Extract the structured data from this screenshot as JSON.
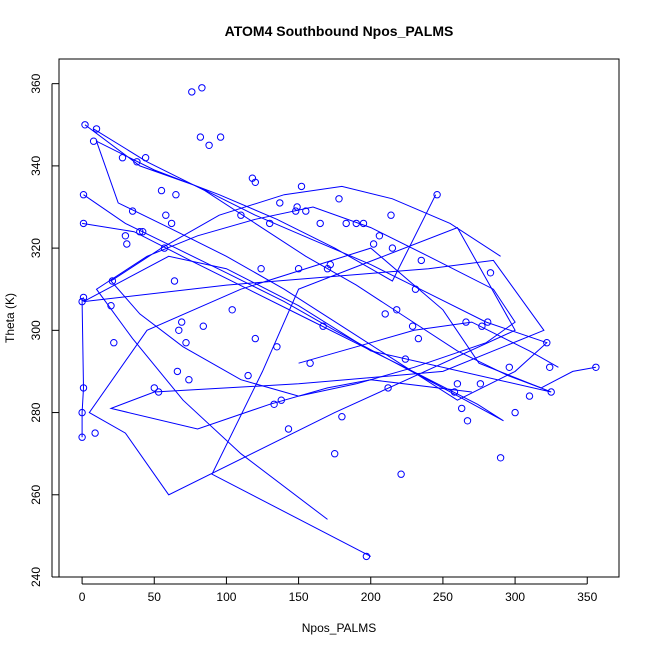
{
  "chart_data": {
    "type": "line",
    "title": "ATOM4 Southbound Npos_PALMS",
    "xlabel": "Npos_PALMS",
    "ylabel": "Theta (K)",
    "xlim": [
      -16,
      372
    ],
    "ylim": [
      240,
      366
    ],
    "xticks": [
      0,
      50,
      100,
      150,
      200,
      250,
      300,
      350
    ],
    "yticks": [
      240,
      260,
      280,
      300,
      320,
      340,
      360
    ],
    "grid": false,
    "legend": "none",
    "colors": {
      "series": "#0000ff",
      "axes": "#000000"
    },
    "series": [
      {
        "type": "line",
        "x": [
          200,
          90,
          125,
          150,
          260,
          300,
          175,
          60,
          30,
          5,
          45,
          110,
          200,
          250,
          275,
          325,
          200,
          150,
          100,
          60,
          1,
          100,
          240,
          285,
          320,
          250,
          150,
          50,
          20,
          80,
          130,
          170,
          200,
          270
        ],
        "y": [
          245,
          265,
          290,
          310,
          325,
          300,
          280,
          260,
          275,
          280,
          300,
          310,
          320,
          305,
          292,
          285,
          295,
          306,
          315,
          318,
          307,
          311,
          315,
          317,
          300,
          290,
          287,
          285,
          281,
          276,
          282,
          286,
          288,
          285
        ]
      },
      {
        "type": "line",
        "x": [
          170,
          110,
          70,
          35,
          10,
          45,
          80,
          120,
          160,
          200,
          240,
          285,
          300,
          280,
          230,
          190,
          150,
          110,
          70,
          40,
          20,
          55,
          95,
          140,
          180,
          215,
          255,
          290
        ],
        "y": [
          254,
          270,
          283,
          298,
          310,
          318,
          323,
          327,
          330,
          325,
          318,
          310,
          302,
          297,
          291,
          287,
          284,
          288,
          296,
          304,
          312,
          320,
          328,
          333,
          335,
          332,
          326,
          318
        ]
      },
      {
        "type": "line",
        "x": [
          2,
          40,
          80,
          120,
          160,
          200,
          240,
          280,
          322,
          300,
          260,
          220,
          180,
          140,
          100,
          60,
          25,
          10,
          50,
          95,
          135,
          175,
          215,
          245
        ],
        "y": [
          350,
          340,
          335,
          328,
          322,
          316,
          309,
          302,
          297,
          290,
          283,
          292,
          301,
          310,
          318,
          325,
          331,
          346,
          339,
          333,
          327,
          320,
          312,
          333
        ]
      },
      {
        "type": "line",
        "x": [
          1,
          30,
          65,
          100,
          140,
          175,
          212,
          250,
          292,
          274,
          235,
          195,
          155,
          115,
          75,
          36,
          0
        ],
        "y": [
          333,
          326,
          320,
          314,
          307,
          300,
          293,
          286,
          278,
          282,
          289,
          296,
          303,
          310,
          317,
          324,
          326
        ]
      },
      {
        "type": "line",
        "x": [
          0,
          0,
          1,
          0,
          1
        ],
        "y": [
          274,
          280,
          286,
          307,
          308
        ]
      },
      {
        "type": "line",
        "x": [
          8,
          45,
          85,
          120,
          155,
          190,
          225,
          260,
          295,
          318,
          340,
          356
        ],
        "y": [
          349,
          341,
          334,
          326,
          318,
          311,
          303,
          295,
          289,
          286,
          290,
          291
        ]
      },
      {
        "type": "line",
        "x": [
          150,
          190,
          230,
          270,
          310,
          330
        ],
        "y": [
          292,
          296,
          300,
          302,
          295,
          291
        ]
      }
    ],
    "points": [
      {
        "x": 0,
        "y": 274
      },
      {
        "x": 0,
        "y": 280
      },
      {
        "x": 1,
        "y": 286
      },
      {
        "x": 0,
        "y": 307
      },
      {
        "x": 1,
        "y": 308
      },
      {
        "x": 1,
        "y": 326
      },
      {
        "x": 1,
        "y": 333
      },
      {
        "x": 2,
        "y": 350
      },
      {
        "x": 8,
        "y": 346
      },
      {
        "x": 10,
        "y": 349
      },
      {
        "x": 9,
        "y": 275
      },
      {
        "x": 20,
        "y": 306
      },
      {
        "x": 21,
        "y": 312
      },
      {
        "x": 22,
        "y": 297
      },
      {
        "x": 28,
        "y": 342
      },
      {
        "x": 30,
        "y": 323
      },
      {
        "x": 31,
        "y": 321
      },
      {
        "x": 35,
        "y": 329
      },
      {
        "x": 38,
        "y": 341
      },
      {
        "x": 40,
        "y": 324
      },
      {
        "x": 42,
        "y": 324
      },
      {
        "x": 44,
        "y": 342
      },
      {
        "x": 50,
        "y": 286
      },
      {
        "x": 53,
        "y": 285
      },
      {
        "x": 55,
        "y": 334
      },
      {
        "x": 57,
        "y": 320
      },
      {
        "x": 58,
        "y": 328
      },
      {
        "x": 62,
        "y": 326
      },
      {
        "x": 64,
        "y": 312
      },
      {
        "x": 65,
        "y": 333
      },
      {
        "x": 66,
        "y": 290
      },
      {
        "x": 67,
        "y": 300
      },
      {
        "x": 69,
        "y": 302
      },
      {
        "x": 72,
        "y": 297
      },
      {
        "x": 74,
        "y": 288
      },
      {
        "x": 76,
        "y": 358
      },
      {
        "x": 82,
        "y": 347
      },
      {
        "x": 83,
        "y": 359
      },
      {
        "x": 84,
        "y": 301
      },
      {
        "x": 88,
        "y": 345
      },
      {
        "x": 96,
        "y": 347
      },
      {
        "x": 104,
        "y": 305
      },
      {
        "x": 110,
        "y": 328
      },
      {
        "x": 115,
        "y": 289
      },
      {
        "x": 118,
        "y": 337
      },
      {
        "x": 120,
        "y": 336
      },
      {
        "x": 120,
        "y": 298
      },
      {
        "x": 124,
        "y": 315
      },
      {
        "x": 130,
        "y": 326
      },
      {
        "x": 133,
        "y": 282
      },
      {
        "x": 135,
        "y": 296
      },
      {
        "x": 137,
        "y": 331
      },
      {
        "x": 138,
        "y": 283
      },
      {
        "x": 143,
        "y": 276
      },
      {
        "x": 148,
        "y": 329
      },
      {
        "x": 149,
        "y": 330
      },
      {
        "x": 150,
        "y": 315
      },
      {
        "x": 152,
        "y": 335
      },
      {
        "x": 155,
        "y": 329
      },
      {
        "x": 158,
        "y": 292
      },
      {
        "x": 165,
        "y": 326
      },
      {
        "x": 167,
        "y": 301
      },
      {
        "x": 170,
        "y": 315
      },
      {
        "x": 172,
        "y": 316
      },
      {
        "x": 175,
        "y": 270
      },
      {
        "x": 178,
        "y": 332
      },
      {
        "x": 180,
        "y": 279
      },
      {
        "x": 183,
        "y": 326
      },
      {
        "x": 190,
        "y": 326
      },
      {
        "x": 195,
        "y": 326
      },
      {
        "x": 197,
        "y": 245
      },
      {
        "x": 202,
        "y": 321
      },
      {
        "x": 206,
        "y": 323
      },
      {
        "x": 210,
        "y": 304
      },
      {
        "x": 212,
        "y": 286
      },
      {
        "x": 214,
        "y": 328
      },
      {
        "x": 215,
        "y": 320
      },
      {
        "x": 218,
        "y": 305
      },
      {
        "x": 221,
        "y": 265
      },
      {
        "x": 224,
        "y": 293
      },
      {
        "x": 229,
        "y": 301
      },
      {
        "x": 231,
        "y": 310
      },
      {
        "x": 233,
        "y": 298
      },
      {
        "x": 235,
        "y": 317
      },
      {
        "x": 246,
        "y": 333
      },
      {
        "x": 258,
        "y": 285
      },
      {
        "x": 260,
        "y": 287
      },
      {
        "x": 263,
        "y": 281
      },
      {
        "x": 266,
        "y": 302
      },
      {
        "x": 267,
        "y": 278
      },
      {
        "x": 276,
        "y": 287
      },
      {
        "x": 277,
        "y": 301
      },
      {
        "x": 281,
        "y": 302
      },
      {
        "x": 283,
        "y": 314
      },
      {
        "x": 290,
        "y": 269
      },
      {
        "x": 296,
        "y": 291
      },
      {
        "x": 300,
        "y": 280
      },
      {
        "x": 310,
        "y": 284
      },
      {
        "x": 322,
        "y": 297
      },
      {
        "x": 324,
        "y": 291
      },
      {
        "x": 325,
        "y": 285
      },
      {
        "x": 356,
        "y": 291
      }
    ]
  }
}
